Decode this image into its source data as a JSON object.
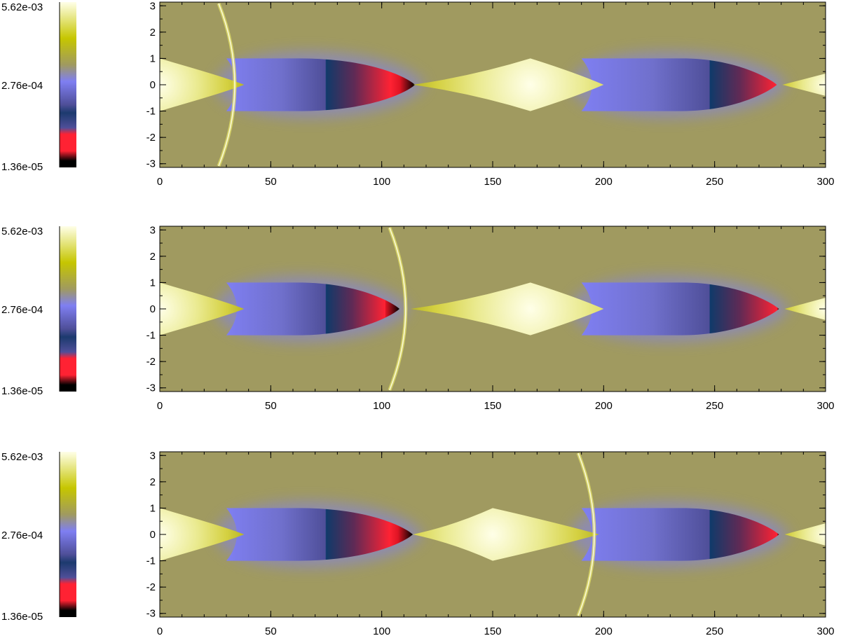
{
  "chart_data": [
    {
      "type": "heatmap",
      "title": "",
      "xlabel": "",
      "ylabel": "",
      "xlim": [
        0,
        300
      ],
      "ylim": [
        -3.14,
        3.14
      ],
      "x_ticks": [
        "0",
        "50",
        "100",
        "150",
        "200",
        "250",
        "300"
      ],
      "y_ticks": [
        "3",
        "2",
        "1",
        "0",
        "-1",
        "-2",
        "-3"
      ],
      "colorbar": {
        "scale": "log",
        "min_label": "1.36e-05",
        "mid_label": "2.76e-04",
        "max_label": "5.62e-03"
      },
      "colormap": [
        "#000000",
        "#ff2233",
        "#4f4f99",
        "#7f7ff2",
        "#a09a60",
        "#c6c600",
        "#ffffe8"
      ],
      "cavities": [
        {
          "x_start": 30,
          "x_tip": 115,
          "x_red_start": 75
        },
        {
          "x_start": 190,
          "x_tip": 278,
          "x_red_start": 248
        }
      ],
      "jets": [
        {
          "x_start": 0,
          "x_end": 38,
          "x_peak": 0
        },
        {
          "x_start": 114,
          "x_end": 200,
          "x_peak": 167
        },
        {
          "x_start": 278,
          "x_end": 300,
          "x_peak": 300
        }
      ],
      "shock_front_x": 36
    },
    {
      "type": "heatmap",
      "title": "",
      "xlabel": "",
      "ylabel": "",
      "xlim": [
        0,
        300
      ],
      "ylim": [
        -3.14,
        3.14
      ],
      "x_ticks": [
        "0",
        "50",
        "100",
        "150",
        "200",
        "250",
        "300"
      ],
      "y_ticks": [
        "3",
        "2",
        "1",
        "0",
        "-1",
        "-2",
        "-3"
      ],
      "colorbar": {
        "scale": "log",
        "min_label": "1.36e-05",
        "mid_label": "2.76e-04",
        "max_label": "5.62e-03"
      },
      "colormap": [
        "#000000",
        "#ff2233",
        "#4f4f99",
        "#7f7ff2",
        "#a09a60",
        "#c6c600",
        "#ffffe8"
      ],
      "cavities": [
        {
          "x_start": 30,
          "x_tip": 108,
          "x_red_start": 75
        },
        {
          "x_start": 190,
          "x_tip": 279,
          "x_red_start": 248
        }
      ],
      "jets": [
        {
          "x_start": 0,
          "x_end": 38,
          "x_peak": 0
        },
        {
          "x_start": 113,
          "x_end": 200,
          "x_peak": 167
        },
        {
          "x_start": 279,
          "x_end": 300,
          "x_peak": 300
        }
      ],
      "shock_front_x": 113
    },
    {
      "type": "heatmap",
      "title": "",
      "xlabel": "",
      "ylabel": "",
      "xlim": [
        0,
        300
      ],
      "ylim": [
        -3.14,
        3.14
      ],
      "x_ticks": [
        "0",
        "50",
        "100",
        "150",
        "200",
        "250",
        "300"
      ],
      "y_ticks": [
        "3",
        "2",
        "1",
        "0",
        "-1",
        "-2",
        "-3"
      ],
      "colorbar": {
        "scale": "log",
        "min_label": "1.36e-05",
        "mid_label": "2.76e-04",
        "max_label": "5.62e-03"
      },
      "colormap": [
        "#000000",
        "#ff2233",
        "#4f4f99",
        "#7f7ff2",
        "#a09a60",
        "#c6c600",
        "#ffffe8"
      ],
      "cavities": [
        {
          "x_start": 30,
          "x_tip": 114,
          "x_red_start": 75
        },
        {
          "x_start": 190,
          "x_tip": 279,
          "x_red_start": 248
        }
      ],
      "jets": [
        {
          "x_start": 0,
          "x_end": 38,
          "x_peak": 0
        },
        {
          "x_start": 114,
          "x_end": 198,
          "x_peak": 150
        },
        {
          "x_start": 279,
          "x_end": 300,
          "x_peak": 300
        }
      ],
      "shock_front_x": 198
    }
  ]
}
